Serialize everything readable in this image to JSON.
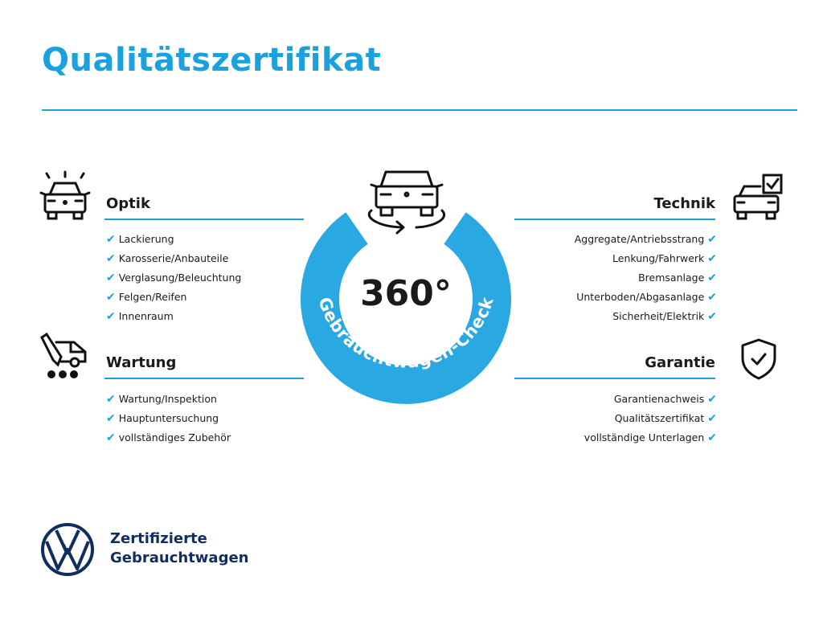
{
  "title": "Qualitätszertifikat",
  "center": {
    "number": "360°",
    "ring_text": "Gebrauchtwagen-Check",
    "icon": "car-rotate-icon"
  },
  "sections": {
    "optik": {
      "heading": "Optik",
      "icon": "car-lights-icon",
      "items": [
        "Lackierung",
        "Karosserie/Anbauteile",
        "Verglasung/Beleuchtung",
        "Felgen/Reifen",
        "Innenraum"
      ]
    },
    "wartung": {
      "heading": "Wartung",
      "icon": "service-truck-icon",
      "items": [
        "Wartung/Inspektion",
        "Hauptuntersuchung",
        "vollständiges Zubehör"
      ]
    },
    "technik": {
      "heading": "Technik",
      "icon": "car-checklist-icon",
      "items": [
        "Aggregate/Antriebsstrang",
        "Lenkung/Fahrwerk",
        "Bremsanlage",
        "Unterboden/Abgasanlage",
        "Sicherheit/Elektrik"
      ]
    },
    "garantie": {
      "heading": "Garantie",
      "icon": "shield-check-icon",
      "items": [
        "Garantienachweis",
        "Qualitätszertifikat",
        "vollständige Unterlagen"
      ]
    }
  },
  "check_mark": "✔",
  "brand": {
    "line1": "Zertifizierte",
    "line2": "Gebrauchtwagen",
    "logo": "vw-logo"
  },
  "colors": {
    "accent": "#1ba1dd",
    "brand_navy": "#0f2d5e",
    "text": "#1a1a1a"
  }
}
